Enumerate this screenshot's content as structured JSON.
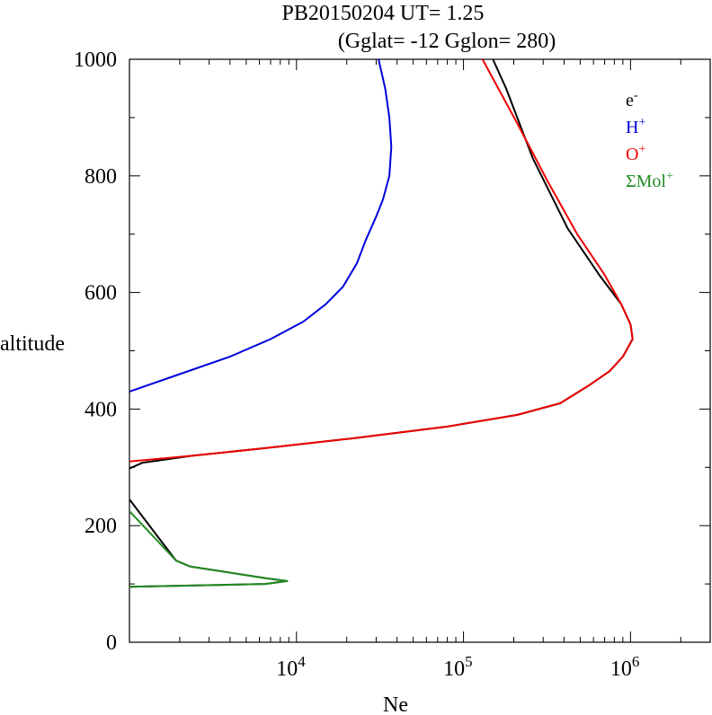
{
  "chart_data": {
    "type": "line",
    "title": "PB20150204   UT=  1.25",
    "subtitle": "(Gglat= -12   Gglon=  280)",
    "xlabel": "Ne",
    "ylabel": "altitude",
    "x_scale": "log",
    "xlim": [
      1000,
      3000000
    ],
    "ylim": [
      0,
      1000
    ],
    "x_ticks": [
      {
        "value": 10000,
        "base": "10",
        "exp": "4"
      },
      {
        "value": 100000,
        "base": "10",
        "exp": "5"
      },
      {
        "value": 1000000,
        "base": "10",
        "exp": "6"
      }
    ],
    "y_ticks": [
      {
        "value": 0,
        "label": "0"
      },
      {
        "value": 200,
        "label": "200"
      },
      {
        "value": 400,
        "label": "400"
      },
      {
        "value": 600,
        "label": "600"
      },
      {
        "value": 800,
        "label": "800"
      },
      {
        "value": 1000,
        "label": "1000"
      }
    ],
    "legend_position": "top-right",
    "series": [
      {
        "name": "e",
        "sup": "-",
        "color": "#000000",
        "segments": [
          [
            [
              1000,
              95
            ],
            [
              6500,
              100
            ],
            [
              8800,
              105
            ],
            [
              6500,
              110
            ],
            [
              2300,
              130
            ],
            [
              1900,
              140
            ],
            [
              1000,
              245
            ]
          ],
          [
            [
              1000,
              298
            ],
            [
              1200,
              308
            ],
            [
              2400,
              320
            ],
            [
              6500,
              333
            ],
            [
              22000,
              350
            ],
            [
              80000,
              370
            ],
            [
              210000,
              390
            ],
            [
              380000,
              410
            ],
            [
              560000,
              440
            ],
            [
              750000,
              465
            ],
            [
              900000,
              490
            ],
            [
              1030000,
              520
            ],
            [
              1000000,
              545
            ],
            [
              880000,
              580
            ],
            [
              650000,
              630
            ],
            [
              420000,
              710
            ],
            [
              260000,
              830
            ],
            [
              180000,
              950
            ],
            [
              150000,
              1000
            ]
          ]
        ]
      },
      {
        "name": "H",
        "sup": "+",
        "color": "#0000dd",
        "segments": [
          [
            [
              1000,
              430
            ],
            [
              2000,
              460
            ],
            [
              4000,
              490
            ],
            [
              7000,
              520
            ],
            [
              11000,
              550
            ],
            [
              15000,
              580
            ],
            [
              19000,
              610
            ],
            [
              23000,
              650
            ],
            [
              26000,
              690
            ],
            [
              30000,
              730
            ],
            [
              33000,
              760
            ],
            [
              36000,
              800
            ],
            [
              37000,
              850
            ],
            [
              36000,
              900
            ],
            [
              34000,
              950
            ],
            [
              31000,
              1000
            ]
          ]
        ]
      },
      {
        "name": "O",
        "sup": "+",
        "color": "#ee0000",
        "segments": [
          [
            [
              1000,
              310
            ],
            [
              2400,
              320
            ],
            [
              6500,
              333
            ],
            [
              22000,
              350
            ],
            [
              80000,
              370
            ],
            [
              210000,
              390
            ],
            [
              380000,
              410
            ],
            [
              560000,
              440
            ],
            [
              750000,
              465
            ],
            [
              900000,
              490
            ],
            [
              1030000,
              520
            ],
            [
              1000000,
              545
            ],
            [
              880000,
              580
            ],
            [
              700000,
              630
            ],
            [
              480000,
              700
            ],
            [
              320000,
              790
            ],
            [
              210000,
              890
            ],
            [
              130000,
              1000
            ]
          ]
        ]
      },
      {
        "name": "ΣMol",
        "sup": "+",
        "color": "#228b22",
        "segments": [
          [
            [
              1000,
              95
            ],
            [
              6500,
              100
            ],
            [
              8800,
              105
            ],
            [
              6500,
              110
            ],
            [
              2300,
              130
            ],
            [
              1900,
              140
            ],
            [
              1000,
              225
            ]
          ]
        ]
      }
    ]
  }
}
